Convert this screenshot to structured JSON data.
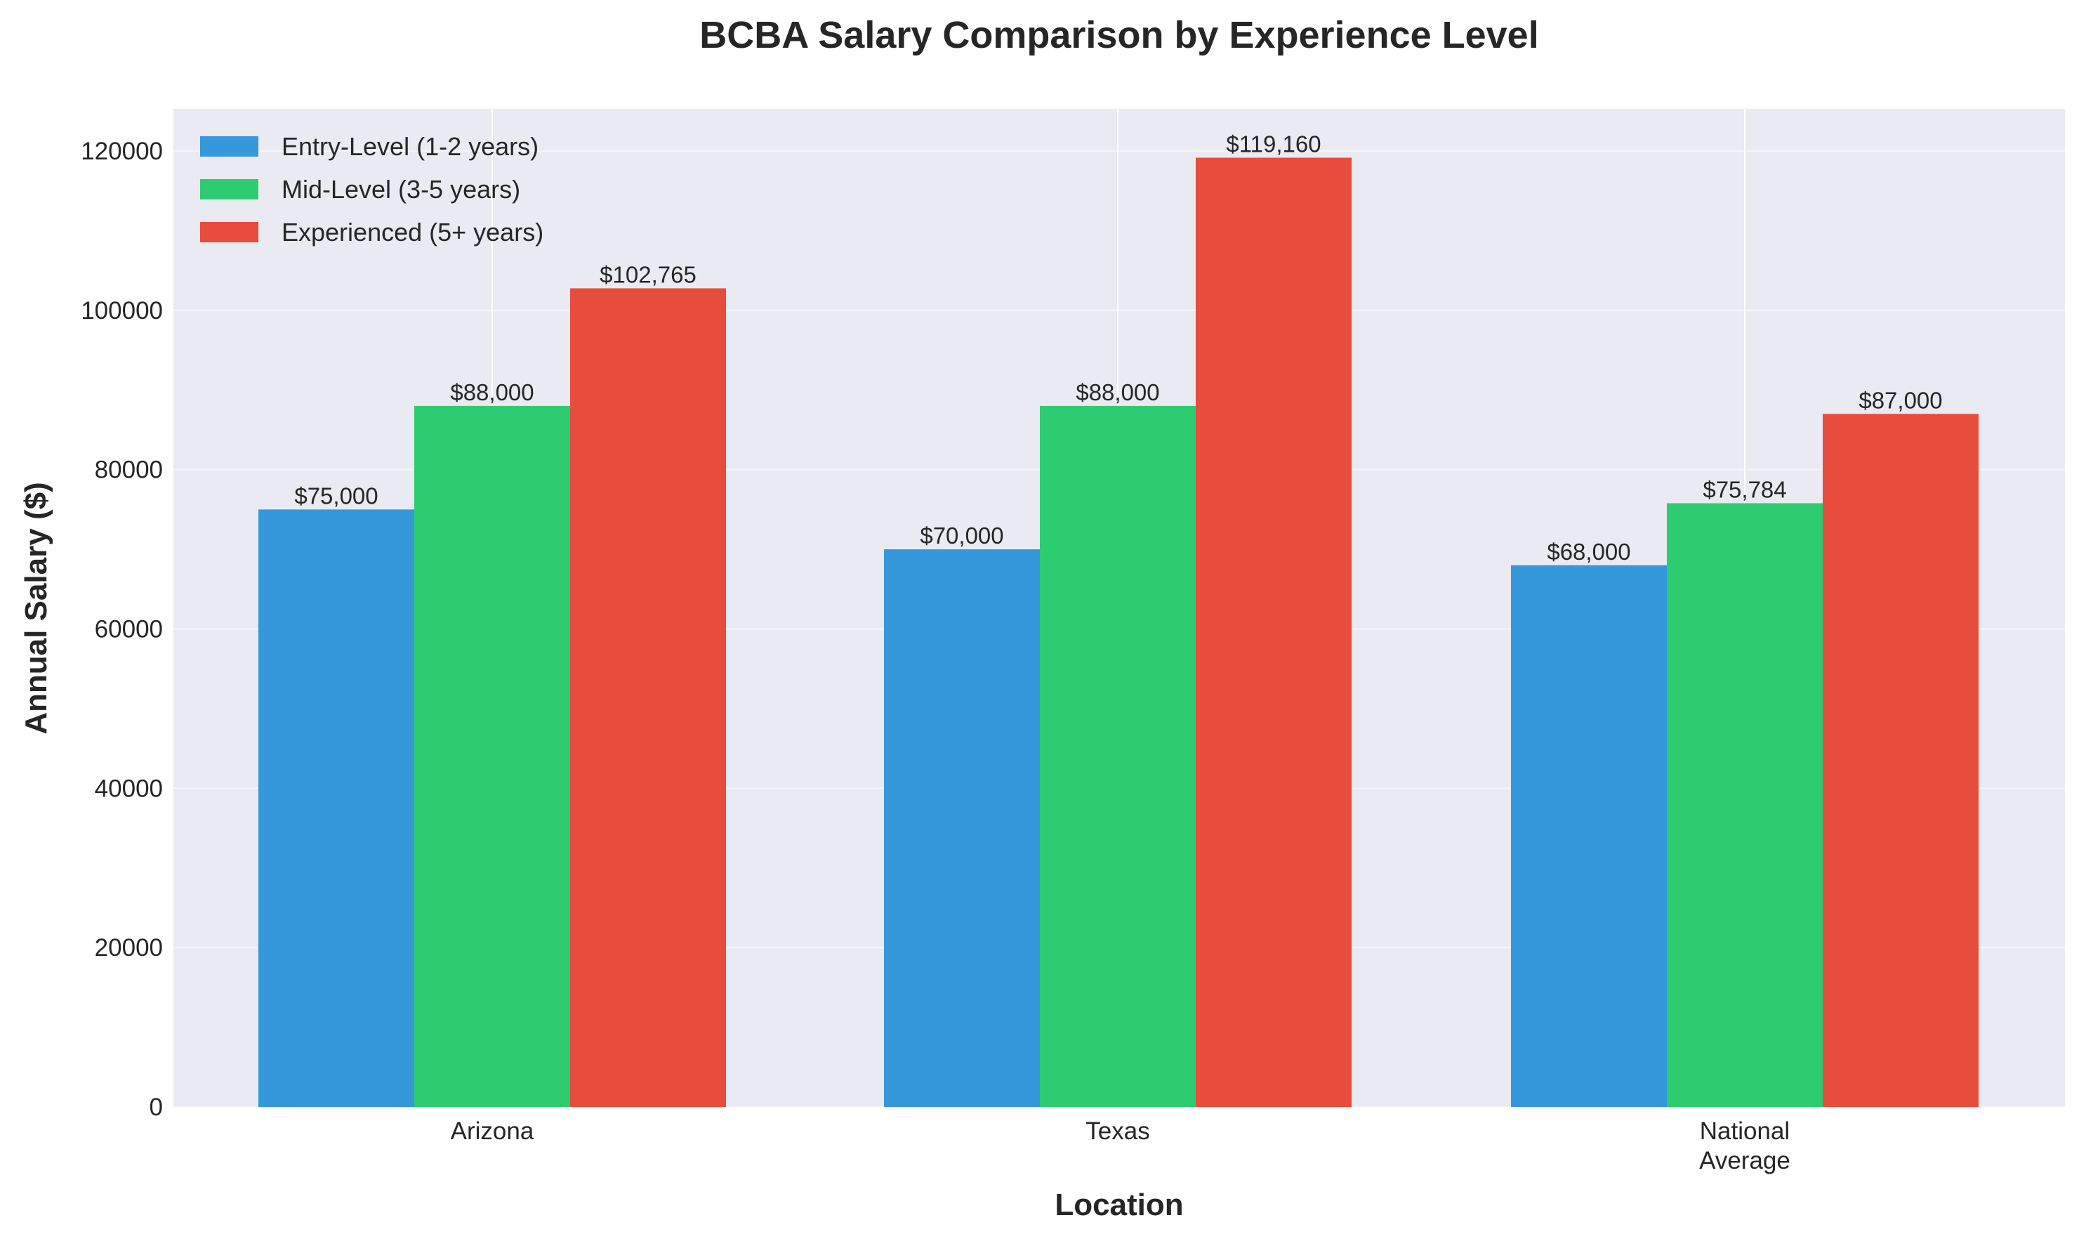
{
  "chart_data": {
    "type": "bar",
    "title": "BCBA Salary Comparison by Experience Level",
    "xlabel": "Location",
    "ylabel": "Annual Salary ($)",
    "categories": [
      "Arizona",
      "Texas",
      "National\nAverage"
    ],
    "series": [
      {
        "name": "Entry-Level (1-2 years)",
        "color": "#3498db",
        "values": [
          75000,
          70000,
          68000
        ],
        "labels": [
          "$75,000",
          "$70,000",
          "$68,000"
        ]
      },
      {
        "name": "Mid-Level (3-5 years)",
        "color": "#2ecc71",
        "values": [
          88000,
          88000,
          75784
        ],
        "labels": [
          "$88,000",
          "$88,000",
          "$75,784"
        ]
      },
      {
        "name": "Experienced (5+ years)",
        "color": "#e74c3c",
        "values": [
          102765,
          119160,
          87000
        ],
        "labels": [
          "$102,765",
          "$119,160",
          "$87,000"
        ]
      }
    ],
    "yticks": [
      "0",
      "20000",
      "40000",
      "60000",
      "80000",
      "100000",
      "120000"
    ],
    "ylim": [
      0,
      125000
    ],
    "grid": true,
    "legend": "top-left",
    "background": "#eaeaf2"
  }
}
